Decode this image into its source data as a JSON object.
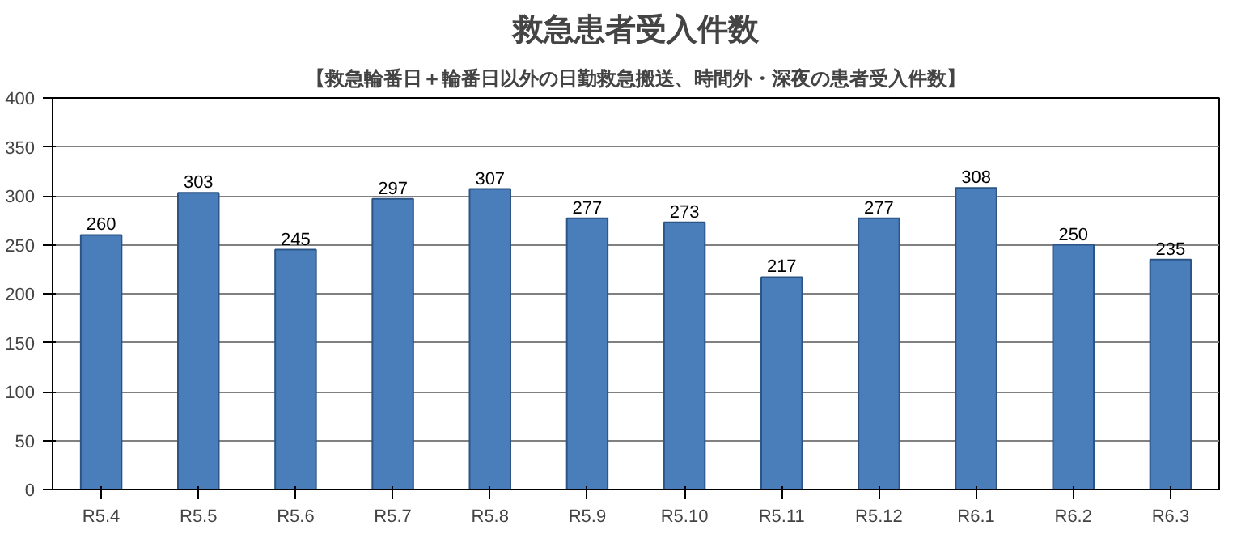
{
  "chart_data": {
    "type": "bar",
    "title": "救急患者受入件数",
    "subtitle": "【救急輪番日＋輪番日以外の日勤救急搬送、時間外・深夜の患者受入件数】",
    "categories": [
      "R5.4",
      "R5.5",
      "R5.6",
      "R5.7",
      "R5.8",
      "R5.9",
      "R5.10",
      "R5.11",
      "R5.12",
      "R6.1",
      "R6.2",
      "R6.3"
    ],
    "values": [
      260,
      303,
      245,
      297,
      307,
      277,
      273,
      217,
      277,
      308,
      250,
      235
    ],
    "color": "#4a7ebb",
    "ylim": [
      0,
      400
    ],
    "yticks": [
      0,
      50,
      100,
      150,
      200,
      250,
      300,
      350,
      400
    ],
    "grid": "y",
    "data_labels": true
  }
}
